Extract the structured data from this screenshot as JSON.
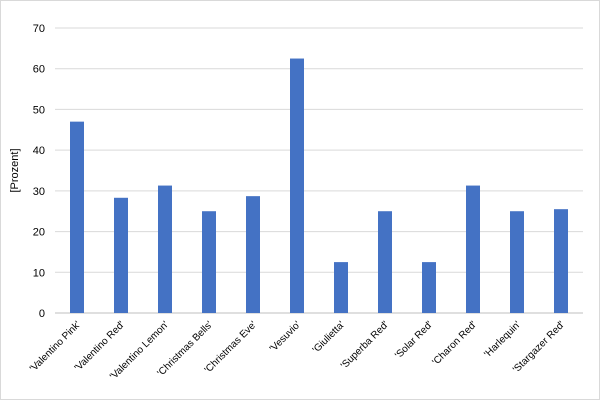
{
  "chart_data": {
    "type": "bar",
    "title": "",
    "xlabel": "",
    "ylabel": "[Prozent]",
    "ylim": [
      0,
      70
    ],
    "yticks": [
      0,
      10,
      20,
      30,
      40,
      50,
      60,
      70
    ],
    "grid": true,
    "legend": "none",
    "bar_color": "#4472C4",
    "grid_color": "#d9d9d9",
    "categories": [
      "'Valentino Pink'",
      "'Valentino Red'",
      "'Valentino Lemon'",
      "'Christmas Bells'",
      "'Christmas Eve'",
      "'Vesuvio'",
      "'Giulietta'",
      "'Superba Red'",
      "'Solar Red'",
      "'Charon Red'",
      "'Harlequin'",
      "'Stargazer Red'"
    ],
    "values": [
      47,
      28.3,
      31.3,
      25,
      28.7,
      62.5,
      12.5,
      25,
      12.5,
      31.3,
      25,
      25.5
    ]
  }
}
